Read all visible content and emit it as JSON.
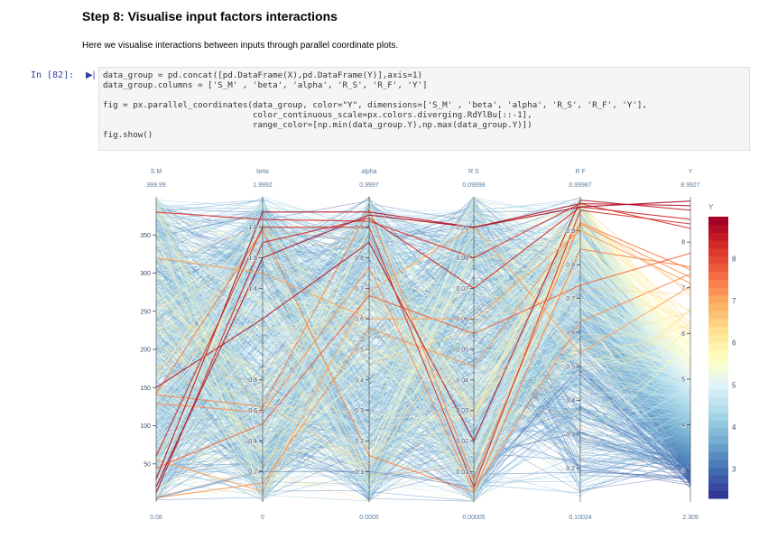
{
  "heading": "Step 8: Visualise input factors interactions",
  "intro": "Here we visualise interactions between inputs through parallel coordinate plots.",
  "cell": {
    "prompt": "In [82]:",
    "code_lines": [
      "data_group = pd.concat([pd.DataFrame(X),pd.DataFrame(Y)],axis=1)",
      "data_group.columns = ['S_M' , 'beta', 'alpha', 'R_S', 'R_F', 'Y']",
      "",
      "fig = px.parallel_coordinates(data_group, color=\"Y\", dimensions=['S_M' , 'beta', 'alpha', 'R_S', 'R_F', 'Y'],",
      "                              color_continuous_scale=px.colors.diverging.RdYlBu[::-1],",
      "                              range_color=[np.min(data_group.Y),np.max(data_group.Y)])",
      "fig.show()"
    ]
  },
  "chart_data": {
    "type": "parallel_coordinates",
    "color_by": "Y",
    "colorscale_name": "RdYlBu reversed",
    "colorscale": [
      "#313695",
      "#4575b4",
      "#74add1",
      "#abd9e9",
      "#e0f3f8",
      "#ffffbf",
      "#fee090",
      "#fdae61",
      "#f46d43",
      "#d73027",
      "#a50026"
    ],
    "colorbar": {
      "title": "Y",
      "ticks": [
        3,
        4,
        5,
        6,
        7,
        8
      ],
      "range": [
        2.309,
        8.9927
      ]
    },
    "dimensions": [
      {
        "label": "S M",
        "range": [
          0.08,
          399.99
        ],
        "top_label": "399.99",
        "bottom_label": "0.08",
        "ticks": [
          {
            "v": 50,
            "t": "50"
          },
          {
            "v": 100,
            "t": "100"
          },
          {
            "v": 150,
            "t": "150"
          },
          {
            "v": 200,
            "t": "200"
          },
          {
            "v": 250,
            "t": "250"
          },
          {
            "v": 300,
            "t": "300"
          },
          {
            "v": 350,
            "t": "350"
          }
        ]
      },
      {
        "label": "beta",
        "range": [
          0,
          1.9992
        ],
        "top_label": "1.9992",
        "bottom_label": "0",
        "ticks": [
          {
            "v": 0.2,
            "t": "0.2"
          },
          {
            "v": 0.4,
            "t": "0.4"
          },
          {
            "v": 0.6,
            "t": "0.6"
          },
          {
            "v": 0.8,
            "t": "0.8"
          },
          {
            "v": 1.4,
            "t": "1.4"
          },
          {
            "v": 1.6,
            "t": "1.6"
          },
          {
            "v": 1.8,
            "t": "1.8"
          }
        ]
      },
      {
        "label": "alpha",
        "range": [
          0.0005,
          0.9997
        ],
        "top_label": "0.9997",
        "bottom_label": "0.0005",
        "ticks": [
          {
            "v": 0.1,
            "t": "0.1"
          },
          {
            "v": 0.2,
            "t": "0.2"
          },
          {
            "v": 0.3,
            "t": "0.3"
          },
          {
            "v": 0.4,
            "t": "0.4"
          },
          {
            "v": 0.5,
            "t": "0.5"
          },
          {
            "v": 0.6,
            "t": "0.6"
          },
          {
            "v": 0.7,
            "t": "0.7"
          },
          {
            "v": 0.8,
            "t": "0.8"
          },
          {
            "v": 0.9,
            "t": "0.9"
          }
        ]
      },
      {
        "label": "R S",
        "range": [
          5e-05,
          0.09998
        ],
        "top_label": "0.09998",
        "bottom_label": "0.00005",
        "ticks": [
          {
            "v": 0.01,
            "t": "0.01"
          },
          {
            "v": 0.02,
            "t": "0.02"
          },
          {
            "v": 0.03,
            "t": "0.03"
          },
          {
            "v": 0.04,
            "t": "0.04"
          },
          {
            "v": 0.05,
            "t": "0.05"
          },
          {
            "v": 0.06,
            "t": "0.06"
          },
          {
            "v": 0.07,
            "t": "0.07"
          },
          {
            "v": 0.08,
            "t": "0.08"
          },
          {
            "v": 0.09,
            "t": "0.09"
          }
        ]
      },
      {
        "label": "R F",
        "range": [
          0.10024,
          0.99987
        ],
        "top_label": "0.99987",
        "bottom_label": "0.10024",
        "ticks": [
          {
            "v": 0.2,
            "t": "0.2"
          },
          {
            "v": 0.3,
            "t": "0.3"
          },
          {
            "v": 0.4,
            "t": "0.4"
          },
          {
            "v": 0.5,
            "t": "0.5"
          },
          {
            "v": 0.6,
            "t": "0.6"
          },
          {
            "v": 0.7,
            "t": "0.7"
          },
          {
            "v": 0.8,
            "t": "0.8"
          },
          {
            "v": 0.9,
            "t": "0.9"
          }
        ]
      },
      {
        "label": "Y",
        "range": [
          2.309,
          8.9927
        ],
        "top_label": "8.9927",
        "bottom_label": "2.309",
        "ticks": [
          {
            "v": 3,
            "t": "3"
          },
          {
            "v": 4,
            "t": "4"
          },
          {
            "v": 5,
            "t": "5"
          },
          {
            "v": 6,
            "t": "6"
          },
          {
            "v": 7,
            "t": "7"
          },
          {
            "v": 8,
            "t": "8"
          }
        ]
      }
    ],
    "sample_records": [
      [
        5,
        0.2,
        0.1,
        0.005,
        0.5,
        2.6
      ],
      [
        30,
        1.9,
        0.95,
        0.09,
        0.98,
        8.8
      ],
      [
        12,
        1.7,
        0.93,
        0.07,
        0.97,
        8.5
      ],
      [
        150,
        1.2,
        0.85,
        0.02,
        0.99,
        8.7
      ],
      [
        60,
        1.8,
        0.9,
        0.005,
        0.96,
        8.4
      ],
      [
        380,
        1.85,
        0.92,
        0.08,
        0.98,
        8.3
      ],
      [
        20,
        1.6,
        0.94,
        0.09,
        0.97,
        8.9
      ],
      [
        200,
        0.9,
        0.7,
        0.03,
        0.8,
        6.5
      ],
      [
        320,
        1.5,
        0.6,
        0.06,
        0.9,
        7.1
      ],
      [
        90,
        0.5,
        0.4,
        0.04,
        0.6,
        5.2
      ]
    ]
  }
}
